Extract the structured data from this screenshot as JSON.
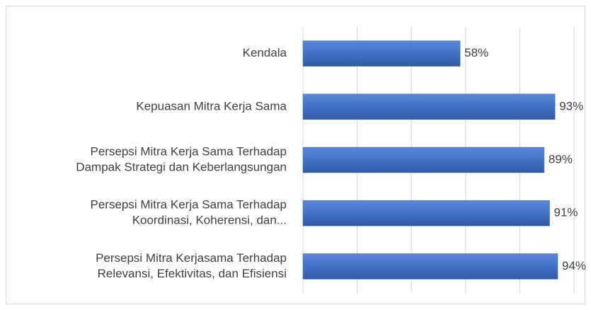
{
  "chart_data": {
    "type": "barh",
    "categories": [
      [
        "Kendala"
      ],
      [
        "Kepuasan Mitra Kerja Sama"
      ],
      [
        "Persepsi Mitra Kerja Sama Terhadap",
        "Dampak Strategi dan Keberlangsungan"
      ],
      [
        "Persepsi Mitra Kerja Sama Terhadap",
        "Koordinasi, Koherensi, dan..."
      ],
      [
        "Persepsi Mitra Kerjasama Terhadap",
        "Relevansi, Efektivitas, dan Efisiensi"
      ]
    ],
    "values": [
      58,
      93,
      89,
      91,
      94
    ],
    "value_labels": [
      "58%",
      "93%",
      "89%",
      "91%",
      "94%"
    ],
    "color": "#4472c4",
    "xlim": [
      0,
      100
    ],
    "xticks": [
      0,
      20,
      40,
      60,
      80,
      100
    ],
    "grid": true
  }
}
